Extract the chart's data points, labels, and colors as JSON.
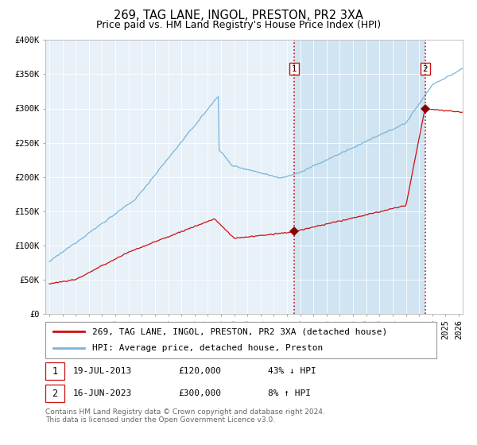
{
  "title": "269, TAG LANE, INGOL, PRESTON, PR2 3XA",
  "subtitle": "Price paid vs. HM Land Registry's House Price Index (HPI)",
  "ylim": [
    0,
    400000
  ],
  "yticks": [
    0,
    50000,
    100000,
    150000,
    200000,
    250000,
    300000,
    350000,
    400000
  ],
  "ytick_labels": [
    "£0",
    "£50K",
    "£100K",
    "£150K",
    "£200K",
    "£250K",
    "£300K",
    "£350K",
    "£400K"
  ],
  "xlim_start": 1995.0,
  "xlim_end": 2026.3,
  "hpi_color": "#7ab5d9",
  "price_color": "#cc1111",
  "marker_color": "#880000",
  "bg_color": "#e8f0f8",
  "span_color": "#d0e4f2",
  "vline1_x": 2013.54,
  "vline2_x": 2023.46,
  "marker1_price": 120000,
  "marker2_price": 300000,
  "legend_line1": "269, TAG LANE, INGOL, PRESTON, PR2 3XA (detached house)",
  "legend_line2": "HPI: Average price, detached house, Preston",
  "note1_date": "19-JUL-2013",
  "note1_price": "£120,000",
  "note1_hpi": "43% ↓ HPI",
  "note2_date": "16-JUN-2023",
  "note2_price": "£300,000",
  "note2_hpi": "8% ↑ HPI",
  "footer": "Contains HM Land Registry data © Crown copyright and database right 2024.\nThis data is licensed under the Open Government Licence v3.0.",
  "title_fontsize": 10.5,
  "subtitle_fontsize": 9,
  "tick_fontsize": 7.5,
  "legend_fontsize": 8,
  "note_fontsize": 8,
  "footer_fontsize": 6.5
}
